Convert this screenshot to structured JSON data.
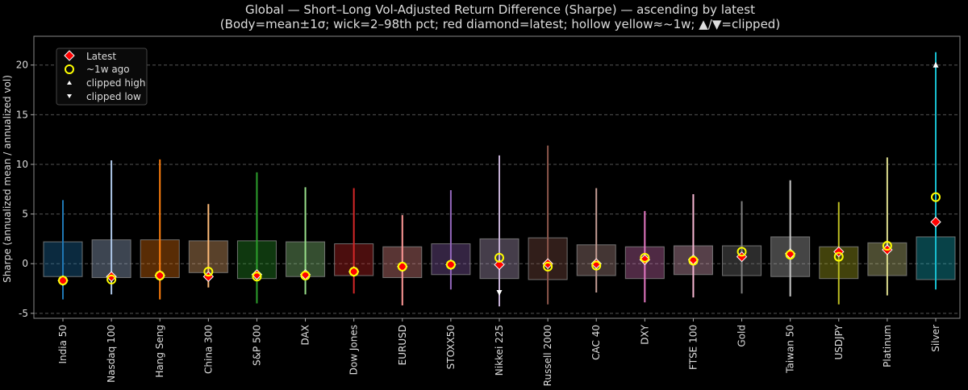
{
  "chart_data": {
    "type": "box-range",
    "title": "Global — Short–Long Vol-Adjusted Return Difference (Sharpe) — ascending by latest",
    "subtitle": "(Body=mean±1σ; wick=2–98th pct; red diamond=latest; hollow yellow≈~1w; ▲/▼=clipped)",
    "xlabel": "",
    "ylabel": "Sharpe (annualized mean / annualized vol)",
    "ylim": [
      -5.5,
      22.9
    ],
    "yticks": [
      -5,
      0,
      5,
      10,
      15,
      20
    ],
    "grid": "y-dashed",
    "legend_placement": "top-left",
    "legend": [
      {
        "label": "Latest",
        "marker": "red-diamond"
      },
      {
        "label": "~1w ago",
        "marker": "hollow-yellow-circle"
      },
      {
        "label": "clipped high",
        "marker": "white-triangle-up"
      },
      {
        "label": "clipped low",
        "marker": "white-triangle-down"
      }
    ],
    "colors": {
      "latest": "#ff0000",
      "week": "#ffff00",
      "clip": "#ffffff"
    },
    "categories": [
      "India 50",
      "Nasdaq 100",
      "Hang Seng",
      "China 300",
      "S&P 500",
      "DAX",
      "Dow Jones",
      "EURUSD",
      "STOXX50",
      "Nikkei 225",
      "Russell 2000",
      "CAC 40",
      "DXY",
      "FTSE 100",
      "Gold",
      "Taiwan 50",
      "USDJPY",
      "Platinum",
      "Silver"
    ],
    "series": [
      {
        "box_high": 2.2,
        "box_low": -1.3,
        "wick_high": 6.4,
        "wick_low": -3.6,
        "latest": -1.7,
        "week": -1.7,
        "color": "#1f77b4"
      },
      {
        "box_high": 2.4,
        "box_low": -1.4,
        "wick_high": 10.4,
        "wick_low": -3.1,
        "latest": -1.3,
        "week": -1.6,
        "color": "#aec7e8"
      },
      {
        "box_high": 2.4,
        "box_low": -1.4,
        "wick_high": 10.5,
        "wick_low": -3.6,
        "latest": -1.2,
        "week": -1.2,
        "color": "#ff7f0e"
      },
      {
        "box_high": 2.3,
        "box_low": -0.9,
        "wick_high": 6.0,
        "wick_low": -2.4,
        "latest": -1.3,
        "week": -0.8,
        "color": "#ffbb78"
      },
      {
        "box_high": 2.3,
        "box_low": -1.5,
        "wick_high": 9.2,
        "wick_low": -4.0,
        "latest": -1.1,
        "week": -1.3,
        "color": "#2ca02c"
      },
      {
        "box_high": 2.2,
        "box_low": -1.3,
        "wick_high": 7.7,
        "wick_low": -3.1,
        "latest": -1.1,
        "week": -1.2,
        "color": "#98df8a"
      },
      {
        "box_high": 2.0,
        "box_low": -1.2,
        "wick_high": 7.6,
        "wick_low": -3.0,
        "latest": -0.8,
        "week": -0.8,
        "color": "#d62728"
      },
      {
        "box_high": 1.7,
        "box_low": -1.4,
        "wick_high": 4.9,
        "wick_low": -4.2,
        "latest": -0.3,
        "week": -0.3,
        "color": "#ff9896"
      },
      {
        "box_high": 2.0,
        "box_low": -1.1,
        "wick_high": 7.4,
        "wick_low": -2.6,
        "latest": -0.1,
        "week": -0.1,
        "color": "#9467bd"
      },
      {
        "box_high": 2.5,
        "box_low": -1.5,
        "wick_high": 10.9,
        "wick_low": -4.3,
        "latest": -0.1,
        "week": 0.6,
        "color": "#c5b0d5",
        "clipped_low": -2.9
      },
      {
        "box_high": 2.6,
        "box_low": -1.6,
        "wick_high": 11.9,
        "wick_low": -4.1,
        "latest": 0.0,
        "week": -0.3,
        "color": "#8c564b"
      },
      {
        "box_high": 1.9,
        "box_low": -1.2,
        "wick_high": 7.6,
        "wick_low": -2.9,
        "latest": 0.0,
        "week": -0.2,
        "color": "#c49c94"
      },
      {
        "box_high": 1.7,
        "box_low": -1.5,
        "wick_high": 5.3,
        "wick_low": -3.9,
        "latest": 0.4,
        "week": 0.6,
        "color": "#e377c2"
      },
      {
        "box_high": 1.8,
        "box_low": -1.1,
        "wick_high": 7.0,
        "wick_low": -3.4,
        "latest": 0.4,
        "week": 0.3,
        "color": "#f7b6d2"
      },
      {
        "box_high": 1.8,
        "box_low": -1.2,
        "wick_high": 6.3,
        "wick_low": -3.0,
        "latest": 0.7,
        "week": 1.2,
        "color": "#7f7f7f"
      },
      {
        "box_high": 2.7,
        "box_low": -1.3,
        "wick_high": 8.4,
        "wick_low": -3.3,
        "latest": 1.0,
        "week": 0.9,
        "color": "#c7c7c7"
      },
      {
        "box_high": 1.7,
        "box_low": -1.5,
        "wick_high": 6.2,
        "wick_low": -4.1,
        "latest": 1.2,
        "week": 0.7,
        "color": "#bcbd22"
      },
      {
        "box_high": 2.1,
        "box_low": -1.2,
        "wick_high": 10.7,
        "wick_low": -3.2,
        "latest": 1.4,
        "week": 1.8,
        "color": "#dbdb8d"
      },
      {
        "box_high": 2.7,
        "box_low": -1.6,
        "wick_high": 21.3,
        "wick_low": -2.6,
        "latest": 4.2,
        "week": 6.7,
        "color": "#17becf",
        "clipped_high": 20
      }
    ]
  }
}
